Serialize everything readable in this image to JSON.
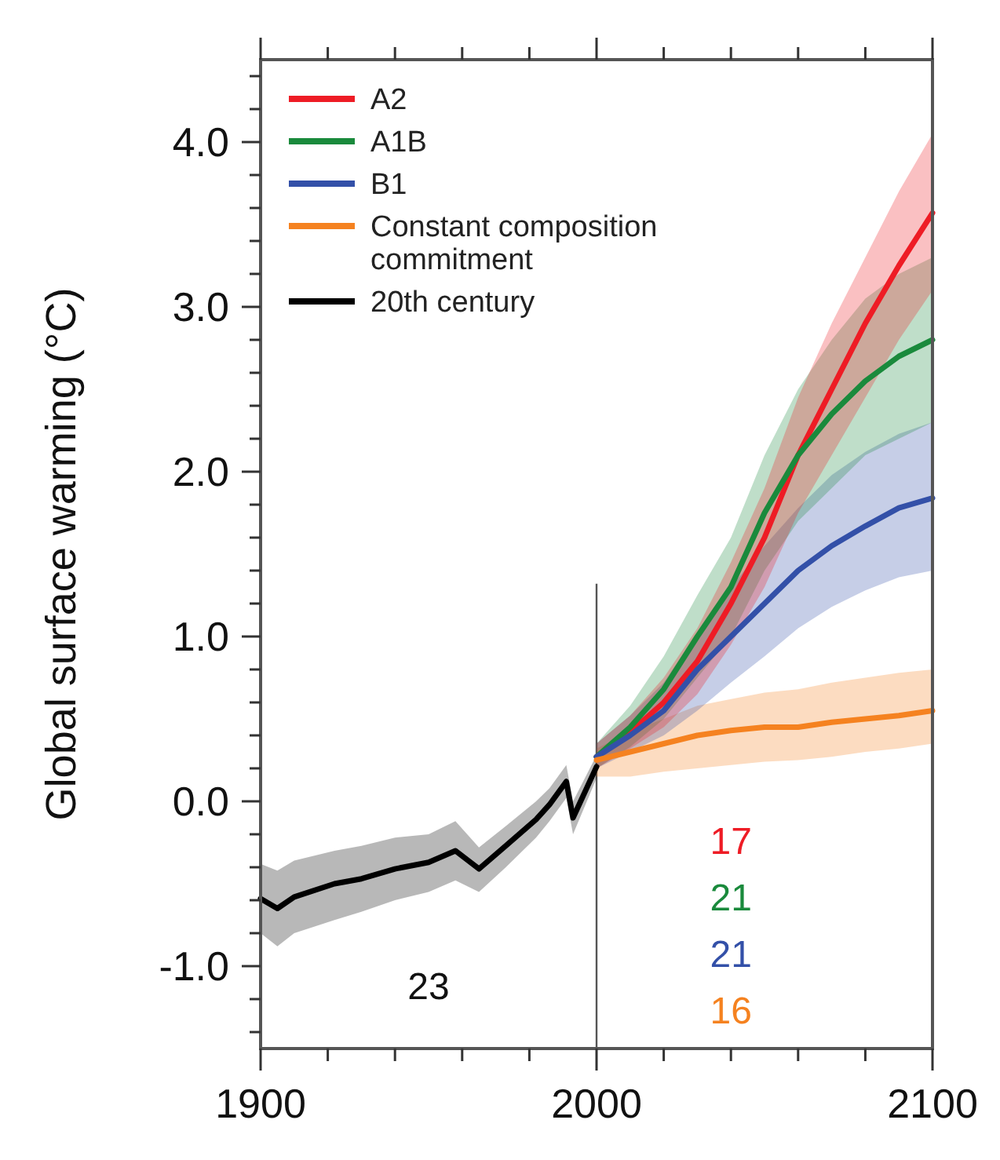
{
  "chart_data": {
    "type": "line",
    "ylabel": "Global surface warming (°C)",
    "xlim": [
      1900,
      2100
    ],
    "xticks": [
      1900,
      {
        "value": 1920,
        "label": null
      },
      {
        "value": 1940,
        "label": null
      },
      {
        "value": 1960,
        "label": null
      },
      {
        "value": 1980,
        "label": null
      },
      2000,
      {
        "value": 2020,
        "label": null
      },
      {
        "value": 2040,
        "label": null
      },
      {
        "value": 2060,
        "label": null
      },
      {
        "value": 2080,
        "label": null
      },
      2100
    ],
    "ylim": [
      -1.5,
      4.5
    ],
    "yticks": [
      {
        "value": -1.4,
        "label": null
      },
      {
        "value": -1.2,
        "label": null
      },
      {
        "value": -1,
        "label": "-1.0"
      },
      {
        "value": -0.8,
        "label": null
      },
      {
        "value": -0.6,
        "label": null
      },
      {
        "value": -0.4,
        "label": null
      },
      {
        "value": -0.2,
        "label": null
      },
      {
        "value": 0,
        "label": "0.0"
      },
      {
        "value": 0.2,
        "label": null
      },
      {
        "value": 0.4,
        "label": null
      },
      {
        "value": 0.6,
        "label": null
      },
      {
        "value": 0.8,
        "label": null
      },
      {
        "value": 1,
        "label": "1.0"
      },
      {
        "value": 1.2,
        "label": null
      },
      {
        "value": 1.4,
        "label": null
      },
      {
        "value": 1.6,
        "label": null
      },
      {
        "value": 1.8,
        "label": null
      },
      {
        "value": 2,
        "label": "2.0"
      },
      {
        "value": 2.2,
        "label": null
      },
      {
        "value": 2.4,
        "label": null
      },
      {
        "value": 2.6,
        "label": null
      },
      {
        "value": 2.8,
        "label": null
      },
      {
        "value": 3,
        "label": "3.0"
      },
      {
        "value": 3.2,
        "label": null
      },
      {
        "value": 3.4,
        "label": null
      },
      {
        "value": 3.6,
        "label": null
      },
      {
        "value": 3.8,
        "label": null
      },
      {
        "value": 4,
        "label": "4.0"
      },
      {
        "value": 4.2,
        "label": null
      },
      {
        "value": 4.4,
        "label": null
      }
    ],
    "grid": false,
    "legend": "top left",
    "marker": "none",
    "line_style": "solid",
    "series": [
      {
        "name": "A2",
        "color": "#ee1c25",
        "x": [
          2000,
          2010,
          2020,
          2030,
          2040,
          2050,
          2060,
          2070,
          2080,
          2090,
          2100
        ],
        "values": [
          0.27,
          0.42,
          0.6,
          0.85,
          1.2,
          1.6,
          2.1,
          2.5,
          2.9,
          3.25,
          3.57
        ],
        "lower": [
          0.2,
          0.32,
          0.45,
          0.65,
          0.95,
          1.3,
          1.75,
          2.1,
          2.45,
          2.8,
          3.1
        ],
        "upper": [
          0.35,
          0.52,
          0.75,
          1.05,
          1.45,
          1.9,
          2.45,
          2.9,
          3.3,
          3.7,
          4.05
        ]
      },
      {
        "name": "A1B",
        "color": "#1a8a3c",
        "x": [
          2000,
          2010,
          2020,
          2030,
          2040,
          2050,
          2060,
          2070,
          2080,
          2090,
          2100
        ],
        "values": [
          0.27,
          0.45,
          0.68,
          1.0,
          1.3,
          1.75,
          2.1,
          2.35,
          2.55,
          2.7,
          2.8
        ],
        "lower": [
          0.2,
          0.33,
          0.5,
          0.75,
          1.0,
          1.4,
          1.7,
          1.9,
          2.1,
          2.2,
          2.3
        ],
        "upper": [
          0.35,
          0.58,
          0.88,
          1.25,
          1.6,
          2.1,
          2.5,
          2.8,
          3.05,
          3.2,
          3.3
        ]
      },
      {
        "name": "B1",
        "color": "#3350a8",
        "x": [
          2000,
          2010,
          2020,
          2030,
          2040,
          2050,
          2060,
          2070,
          2080,
          2090,
          2100
        ],
        "values": [
          0.27,
          0.4,
          0.55,
          0.8,
          1.0,
          1.2,
          1.4,
          1.55,
          1.67,
          1.78,
          1.84
        ],
        "lower": [
          0.2,
          0.3,
          0.4,
          0.55,
          0.72,
          0.88,
          1.05,
          1.18,
          1.28,
          1.36,
          1.4
        ],
        "upper": [
          0.35,
          0.52,
          0.72,
          1.02,
          1.3,
          1.55,
          1.78,
          1.98,
          2.12,
          2.23,
          2.3
        ]
      },
      {
        "name": "Constant composition commitment",
        "color": "#f58220",
        "x": [
          2000,
          2010,
          2020,
          2030,
          2040,
          2050,
          2060,
          2070,
          2080,
          2090,
          2100
        ],
        "values": [
          0.25,
          0.3,
          0.35,
          0.4,
          0.43,
          0.45,
          0.45,
          0.48,
          0.5,
          0.52,
          0.55
        ],
        "lower": [
          0.15,
          0.15,
          0.18,
          0.2,
          0.22,
          0.24,
          0.25,
          0.27,
          0.3,
          0.32,
          0.35
        ],
        "upper": [
          0.32,
          0.42,
          0.5,
          0.58,
          0.62,
          0.66,
          0.68,
          0.72,
          0.75,
          0.78,
          0.8
        ]
      },
      {
        "name": "20th century",
        "color": "#000000",
        "x": [
          1900,
          1905,
          1910,
          1922,
          1930,
          1940,
          1950,
          1958,
          1965,
          1973,
          1982,
          1986,
          1991,
          1993,
          2000
        ],
        "values": [
          -0.59,
          -0.65,
          -0.58,
          -0.5,
          -0.47,
          -0.41,
          -0.37,
          -0.3,
          -0.41,
          -0.27,
          -0.11,
          -0.02,
          0.12,
          -0.1,
          0.21
        ],
        "lower": [
          -0.8,
          -0.88,
          -0.8,
          -0.72,
          -0.67,
          -0.6,
          -0.55,
          -0.48,
          -0.55,
          -0.4,
          -0.22,
          -0.12,
          0.02,
          -0.2,
          0.14
        ],
        "upper": [
          -0.38,
          -0.42,
          -0.36,
          -0.3,
          -0.27,
          -0.22,
          -0.2,
          -0.12,
          -0.28,
          -0.15,
          0.0,
          0.08,
          0.22,
          0.0,
          0.28
        ]
      }
    ],
    "ref_lines": [
      {
        "axis": "x",
        "value": 2000,
        "color": "#555555"
      }
    ],
    "annotations": [
      "23",
      "17",
      "21",
      "21",
      "16"
    ]
  }
}
